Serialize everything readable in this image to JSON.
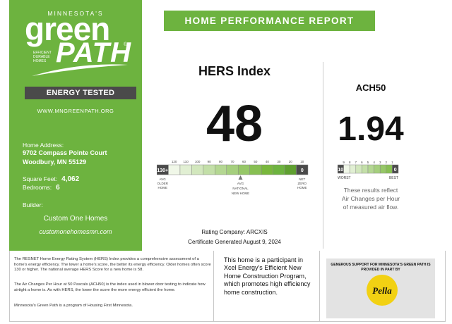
{
  "branding": {
    "state": "MINNESOTA'S",
    "green": "green",
    "path": "PATH",
    "reg": "®",
    "tagline": [
      "EFFICIENT",
      "DURABLE",
      "HOMES"
    ],
    "energy_tested": "ENERGY TESTED",
    "url": "WWW.MNGREENPATH.ORG"
  },
  "home": {
    "address_label": "Home Address:",
    "address_line1": "9702 Compass Pointe Court",
    "address_line2": "Woodbury, MN 55129",
    "sqft_label": "Square Feet:",
    "sqft": "4,062",
    "bedrooms_label": "Bedrooms:",
    "bedrooms": "6",
    "builder_label": "Builder:",
    "builder_name": "Custom One Homes",
    "builder_url": "customonehomesmn.com"
  },
  "report": {
    "header": "HOME PERFORMANCE REPORT",
    "rating_company": "Rating Company: ARCXIS",
    "generated": "Certificate Generated August 9, 2024"
  },
  "hers": {
    "title": "HERS Index",
    "score": 48,
    "scale_max_label": "130+",
    "scale_min_label": "0",
    "ticks": [
      "120",
      "110",
      "100",
      "90",
      "80",
      "70",
      "60",
      "50",
      "40",
      "30",
      "20",
      "10"
    ],
    "left_caption": [
      "AVG",
      "OLDER",
      "HOME"
    ],
    "mid_caption": [
      "AVG",
      "NATIONAL",
      "NEW HOME"
    ],
    "right_caption": [
      "NET",
      "ZERO",
      "HOME"
    ],
    "segment_colors": [
      "#ffffff",
      "#f0f7e8",
      "#e1efd3",
      "#d2e7bd",
      "#c3dfa8",
      "#b4d792",
      "#a5cf7d",
      "#96c767",
      "#87bf52",
      "#78b73c",
      "#6db33f",
      "#5fa030",
      "#4d8a25"
    ]
  },
  "ach": {
    "title": "ACH50",
    "score": "1.94",
    "ticks": [
      "9",
      "8",
      "7",
      "6",
      "5",
      "4",
      "3",
      "2",
      "1"
    ],
    "scale_max_label": "10",
    "scale_min_label": "0",
    "worst": "WORST",
    "best": "BEST",
    "note": [
      "These results reflect",
      "Air Changes per Hour",
      "of measured air flow."
    ],
    "segment_colors": [
      "#ffffff",
      "#f0f7e8",
      "#e1efd3",
      "#d2e7bd",
      "#c3dfa8",
      "#b4d792",
      "#a5cf7d",
      "#96c767",
      "#87bf52",
      "#6db33f"
    ]
  },
  "footer": {
    "hers_info": "The RESNET Home Energy Rating System (HERS) Index provides a comprehensive assessment of a home's energy efficiency. The lower a home's score, the better its energy efficiency. Older homes often score 130 or higher. The national average HERS Score for a new home is 58.",
    "ach_info": "The Air Changes Per Hour at 50 Pascals (ACH50) is the index used in blower door testing to indicate how airtight a home is. As with HERS, the lower the score the more energy efficient the home.",
    "program_info": "Minnesota's Green Path is a program of Housing First Minnesota.",
    "xcel": "This home is a participant in Xcel Energy's Efficient New Home Construction Program, which promotes high efficiency home construction.",
    "sponsor": "GENEROUS SUPPORT FOR MINNESOTA'S GREEN PATH IS PROVIDED IN PART BY",
    "sponsor_logo": "Pella"
  },
  "colors": {
    "brand_green": "#6db33f",
    "dark_gray": "#4a4a4a",
    "pella_yellow": "#f2d113"
  }
}
